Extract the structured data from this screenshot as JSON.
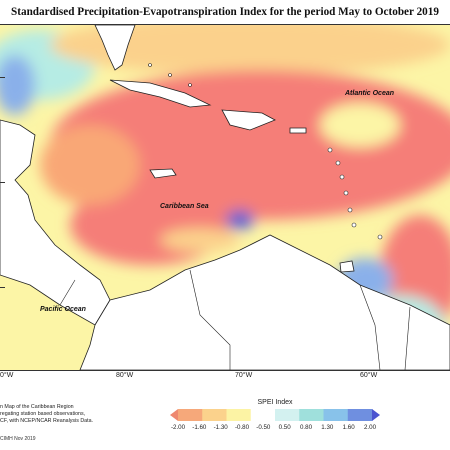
{
  "title": "Standardised Precipitation-Evapotranspiration Index for the period May to October 2019",
  "labels": {
    "atlantic": "Atlantic Ocean",
    "caribbean": "Caribbean Sea",
    "pacific": "Pacific Ocean"
  },
  "longitudes": [
    "0°W",
    "80°W",
    "70°W",
    "60°W"
  ],
  "notes": [
    "n Map of the Caribbean Region",
    "regating station based observations,",
    "CF, with NCEP/NCAR Reanalysis Data."
  ],
  "credit": "CIMH Nov 2019",
  "legend": {
    "title": "SPEI Index",
    "ticks": [
      "-2.00",
      "-1.60",
      "-1.30",
      "-0.80",
      "-0.50",
      "0.50",
      "0.80",
      "1.30",
      "1.60",
      "2.00"
    ],
    "colors": [
      "#ee8870",
      "#f6a87a",
      "#fbd28c",
      "#fcf3a4",
      "#ffffff",
      "#d3f1f0",
      "#9fe0dc",
      "#88c2ea",
      "#6f8fe0",
      "#4b54d0"
    ]
  },
  "palette": {
    "severe_dry": "#f57e78",
    "moderate_dry": "#f9a776",
    "mild_dry": "#fbd18c",
    "near_normal": "#fcf5a6",
    "wet": "#b6ece4",
    "very_wet": "#8ab0ea",
    "extreme_wet": "#5b62d2",
    "land": "#ffffff"
  }
}
